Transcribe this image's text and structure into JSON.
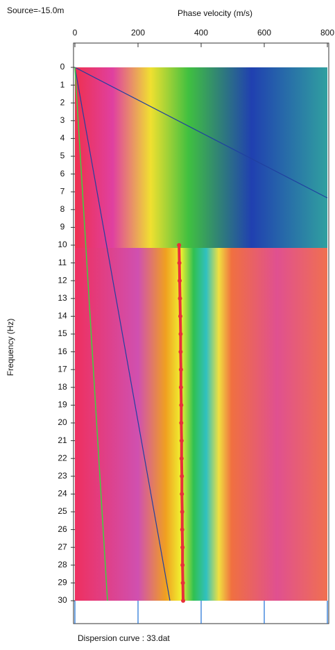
{
  "chart_data": {
    "type": "line",
    "title": "Source=-15.0m",
    "x_label": "Phase velocity (m/s)",
    "y_label": "Frequency (Hz)",
    "footer": "Dispersion curve : 33.dat",
    "xlim": [
      0,
      800
    ],
    "xticks": [
      0,
      200,
      400,
      600,
      800
    ],
    "ylim": [
      0,
      30
    ],
    "yticks": [
      0,
      1,
      2,
      3,
      4,
      5,
      6,
      7,
      8,
      9,
      10,
      11,
      12,
      13,
      14,
      15,
      16,
      17,
      18,
      19,
      20,
      21,
      22,
      23,
      24,
      25,
      26,
      27,
      28,
      29,
      30
    ],
    "y_inverted": true,
    "grid_color": "#1a6fd6",
    "series": [
      {
        "color": "#e8303a",
        "x": [
          330,
          331,
          332,
          333,
          334,
          335,
          335,
          336,
          336,
          337,
          337,
          338,
          338,
          339,
          339,
          340,
          340,
          341,
          341,
          342,
          343
        ],
        "values": [
          10,
          11,
          12,
          13,
          14,
          15,
          16,
          17,
          18,
          19,
          20,
          21,
          22,
          23,
          24,
          25,
          26,
          27,
          28,
          29,
          30
        ]
      }
    ]
  }
}
